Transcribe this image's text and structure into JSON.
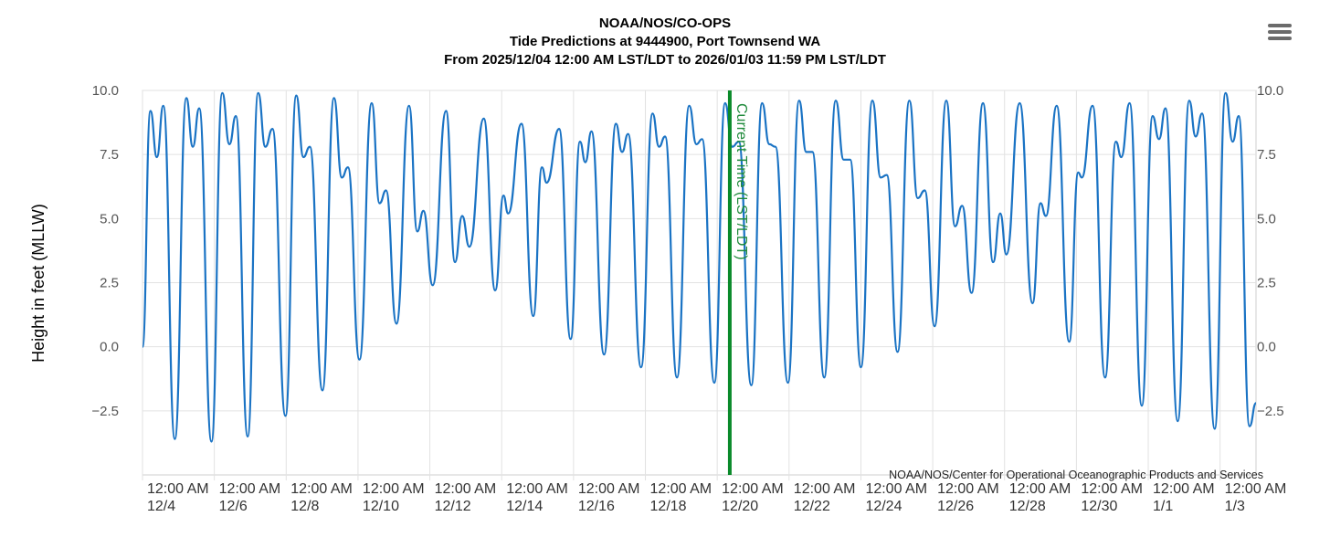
{
  "header": {
    "line1": "NOAA/NOS/CO-OPS",
    "line2": "Tide Predictions at 9444900, Port Townsend WA",
    "line3": "From 2025/12/04 12:00 AM LST/LDT to 2026/01/03 11:59 PM LST/LDT"
  },
  "menu_icon": "hamburger-menu-icon",
  "colors": {
    "series": "#1a73c4",
    "current_time": "#0a8a2a",
    "grid": "#e2e2e2"
  },
  "chart_data": {
    "type": "line",
    "ylabel": "Height in feet (MLLW)",
    "ylim": [
      -5.0,
      10.0
    ],
    "yticks": [
      "10.0",
      "7.5",
      "5.0",
      "2.5",
      "0.0",
      "−2.5"
    ],
    "xlim_days": [
      0,
      31
    ],
    "xticks": [
      {
        "line1": "12:00 AM",
        "line2": "12/4"
      },
      {
        "line1": "12:00 AM",
        "line2": "12/6"
      },
      {
        "line1": "12:00 AM",
        "line2": "12/8"
      },
      {
        "line1": "12:00 AM",
        "line2": "12/10"
      },
      {
        "line1": "12:00 AM",
        "line2": "12/12"
      },
      {
        "line1": "12:00 AM",
        "line2": "12/14"
      },
      {
        "line1": "12:00 AM",
        "line2": "12/16"
      },
      {
        "line1": "12:00 AM",
        "line2": "12/18"
      },
      {
        "line1": "12:00 AM",
        "line2": "12/20"
      },
      {
        "line1": "12:00 AM",
        "line2": "12/22"
      },
      {
        "line1": "12:00 AM",
        "line2": "12/24"
      },
      {
        "line1": "12:00 AM",
        "line2": "12/26"
      },
      {
        "line1": "12:00 AM",
        "line2": "12/28"
      },
      {
        "line1": "12:00 AM",
        "line2": "12/30"
      },
      {
        "line1": "12:00 AM",
        "line2": "1/1"
      },
      {
        "line1": "12:00 AM",
        "line2": "1/3"
      }
    ],
    "current_time_label": "Current Time (LST/LDT)",
    "current_time_day": 16.35,
    "credit": "NOAA/NOS/Center for Operational Oceanographic Products and Services",
    "series": [
      {
        "x_unit": "days since 2025/12/04 12:00 AM",
        "points": [
          [
            0.0,
            0.0
          ],
          [
            0.22,
            9.2
          ],
          [
            0.4,
            7.4
          ],
          [
            0.58,
            9.4
          ],
          [
            0.9,
            -3.6
          ],
          [
            1.22,
            9.7
          ],
          [
            1.4,
            7.8
          ],
          [
            1.58,
            9.3
          ],
          [
            1.92,
            -3.7
          ],
          [
            2.22,
            9.9
          ],
          [
            2.42,
            7.9
          ],
          [
            2.6,
            9.0
          ],
          [
            2.93,
            -3.5
          ],
          [
            3.22,
            9.9
          ],
          [
            3.42,
            7.8
          ],
          [
            3.62,
            8.5
          ],
          [
            3.98,
            -2.7
          ],
          [
            4.28,
            9.8
          ],
          [
            4.48,
            7.4
          ],
          [
            4.66,
            7.8
          ],
          [
            5.01,
            -1.7
          ],
          [
            5.33,
            9.7
          ],
          [
            5.55,
            6.6
          ],
          [
            5.72,
            7.0
          ],
          [
            6.04,
            -0.5
          ],
          [
            6.38,
            9.5
          ],
          [
            6.6,
            5.6
          ],
          [
            6.78,
            6.1
          ],
          [
            7.07,
            0.9
          ],
          [
            7.42,
            9.4
          ],
          [
            7.65,
            4.5
          ],
          [
            7.82,
            5.3
          ],
          [
            8.08,
            2.4
          ],
          [
            8.45,
            9.2
          ],
          [
            8.7,
            3.3
          ],
          [
            8.9,
            5.1
          ],
          [
            9.1,
            3.9
          ],
          [
            9.5,
            8.9
          ],
          [
            9.82,
            2.2
          ],
          [
            10.05,
            5.9
          ],
          [
            10.18,
            5.2
          ],
          [
            10.55,
            8.7
          ],
          [
            10.88,
            1.2
          ],
          [
            11.12,
            7.0
          ],
          [
            11.25,
            6.4
          ],
          [
            11.6,
            8.5
          ],
          [
            11.92,
            0.3
          ],
          [
            12.18,
            8.0
          ],
          [
            12.33,
            7.2
          ],
          [
            12.5,
            8.4
          ],
          [
            12.85,
            -0.3
          ],
          [
            13.18,
            8.7
          ],
          [
            13.35,
            7.6
          ],
          [
            13.52,
            8.3
          ],
          [
            13.88,
            -0.8
          ],
          [
            14.2,
            9.1
          ],
          [
            14.38,
            7.8
          ],
          [
            14.55,
            8.2
          ],
          [
            14.88,
            -1.2
          ],
          [
            15.22,
            9.4
          ],
          [
            15.42,
            7.9
          ],
          [
            15.58,
            8.1
          ],
          [
            15.92,
            -1.4
          ],
          [
            16.22,
            9.5
          ],
          [
            16.42,
            7.8
          ],
          [
            16.6,
            8.0
          ],
          [
            16.95,
            -1.5
          ],
          [
            17.25,
            9.5
          ],
          [
            17.45,
            7.9
          ],
          [
            17.62,
            7.8
          ],
          [
            17.97,
            -1.4
          ],
          [
            18.28,
            9.6
          ],
          [
            18.48,
            7.6
          ],
          [
            18.65,
            7.6
          ],
          [
            18.98,
            -1.2
          ],
          [
            19.3,
            9.6
          ],
          [
            19.52,
            7.3
          ],
          [
            19.7,
            7.3
          ],
          [
            20.0,
            -0.8
          ],
          [
            20.32,
            9.6
          ],
          [
            20.55,
            6.6
          ],
          [
            20.72,
            6.7
          ],
          [
            21.02,
            -0.2
          ],
          [
            21.35,
            9.6
          ],
          [
            21.58,
            5.8
          ],
          [
            21.78,
            6.1
          ],
          [
            22.05,
            0.8
          ],
          [
            22.38,
            9.6
          ],
          [
            22.62,
            4.7
          ],
          [
            22.82,
            5.5
          ],
          [
            23.08,
            2.1
          ],
          [
            23.4,
            9.5
          ],
          [
            23.68,
            3.3
          ],
          [
            23.88,
            5.2
          ],
          [
            24.05,
            3.6
          ],
          [
            24.42,
            9.5
          ],
          [
            24.78,
            1.7
          ],
          [
            25.0,
            5.6
          ],
          [
            25.15,
            5.1
          ],
          [
            25.45,
            9.4
          ],
          [
            25.8,
            0.2
          ],
          [
            26.05,
            6.8
          ],
          [
            26.15,
            6.6
          ],
          [
            26.45,
            9.4
          ],
          [
            26.8,
            -1.2
          ],
          [
            27.1,
            8.0
          ],
          [
            27.25,
            7.4
          ],
          [
            27.48,
            9.5
          ],
          [
            27.82,
            -2.3
          ],
          [
            28.12,
            9.0
          ],
          [
            28.3,
            8.1
          ],
          [
            28.48,
            9.3
          ],
          [
            28.82,
            -2.9
          ],
          [
            29.14,
            9.6
          ],
          [
            29.32,
            8.2
          ],
          [
            29.5,
            9.1
          ],
          [
            29.85,
            -3.2
          ],
          [
            30.15,
            9.9
          ],
          [
            30.35,
            8.0
          ],
          [
            30.52,
            9.0
          ],
          [
            30.82,
            -3.1
          ],
          [
            31.0,
            -2.2
          ]
        ]
      }
    ]
  }
}
